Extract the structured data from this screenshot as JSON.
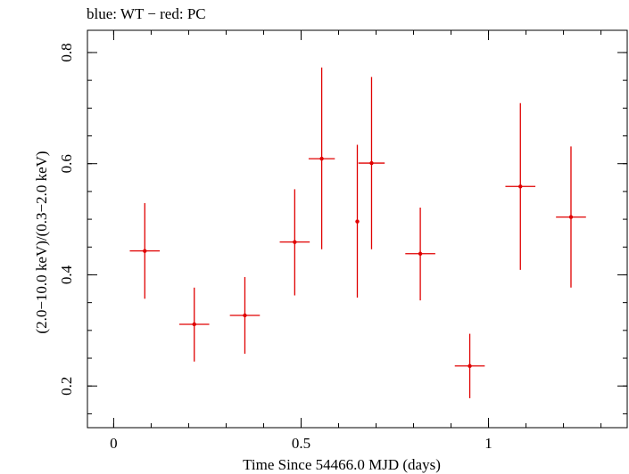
{
  "chart_data": {
    "type": "scatter",
    "title": "blue: WT − red: PC",
    "xlabel": "Time Since 54466.0 MJD (days)",
    "ylabel": "(2.0−10.0 keV)/(0.3−2.0 keV)",
    "xlim": [
      -0.07,
      1.37
    ],
    "ylim": [
      0.125,
      0.84
    ],
    "x_ticks": [
      {
        "value": 0,
        "label": "0"
      },
      {
        "value": 0.5,
        "label": "0.5"
      },
      {
        "value": 1,
        "label": "1"
      }
    ],
    "y_ticks": [
      {
        "value": 0.2,
        "label": "0.2"
      },
      {
        "value": 0.4,
        "label": "0.4"
      },
      {
        "value": 0.6,
        "label": "0.6"
      },
      {
        "value": 0.8,
        "label": "0.8"
      }
    ],
    "x_minor_step": 0.1,
    "y_minor_step": 0.05,
    "grid": false,
    "series": [
      {
        "color": "#e00000",
        "points": [
          {
            "x": 0.083,
            "xerr": 0.04,
            "y": 0.443,
            "ylo": 0.357,
            "yhi": 0.529
          },
          {
            "x": 0.215,
            "xerr": 0.04,
            "y": 0.311,
            "ylo": 0.244,
            "yhi": 0.377
          },
          {
            "x": 0.35,
            "xerr": 0.04,
            "y": 0.327,
            "ylo": 0.258,
            "yhi": 0.396
          },
          {
            "x": 0.483,
            "xerr": 0.04,
            "y": 0.459,
            "ylo": 0.363,
            "yhi": 0.554
          },
          {
            "x": 0.555,
            "xerr": 0.035,
            "y": 0.609,
            "ylo": 0.446,
            "yhi": 0.773
          },
          {
            "x": 0.65,
            "xerr": 0.0,
            "y": 0.496,
            "ylo": 0.359,
            "yhi": 0.634
          },
          {
            "x": 0.688,
            "xerr": 0.035,
            "y": 0.601,
            "ylo": 0.446,
            "yhi": 0.756
          },
          {
            "x": 0.818,
            "xerr": 0.04,
            "y": 0.438,
            "ylo": 0.354,
            "yhi": 0.521
          },
          {
            "x": 0.95,
            "xerr": 0.04,
            "y": 0.236,
            "ylo": 0.178,
            "yhi": 0.294
          },
          {
            "x": 1.085,
            "xerr": 0.04,
            "y": 0.559,
            "ylo": 0.409,
            "yhi": 0.709
          },
          {
            "x": 1.22,
            "xerr": 0.04,
            "y": 0.504,
            "ylo": 0.377,
            "yhi": 0.631
          }
        ]
      }
    ]
  }
}
